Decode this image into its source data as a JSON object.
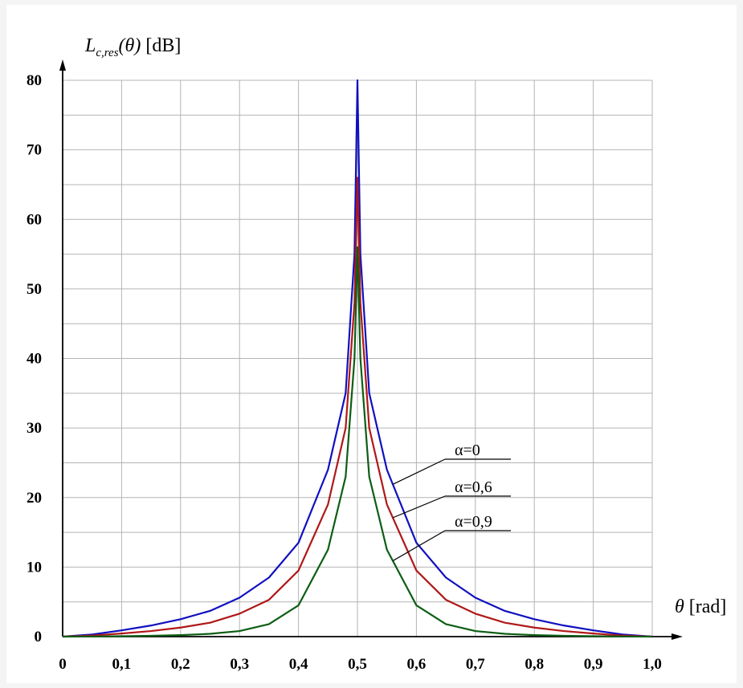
{
  "chart_data": {
    "type": "line",
    "ylabel": {
      "main": "L",
      "sub": "c,res",
      "arg": "(θ)",
      "unit": " [dB]"
    },
    "xlabel": {
      "symbol": "θ",
      "unit": " [rad]"
    },
    "xlim": [
      0,
      1.0
    ],
    "ylim": [
      0,
      80
    ],
    "x_ticks": [
      "0",
      "0,1",
      "0,2",
      "0,3",
      "0,4",
      "0,5",
      "0,6",
      "0,7",
      "0,8",
      "0,9",
      "1,0"
    ],
    "y_ticks": [
      "0",
      "10",
      "20",
      "30",
      "40",
      "50",
      "60",
      "70",
      "80"
    ],
    "grid": true,
    "series": [
      {
        "name": "α=0",
        "color": "#1010c0",
        "x": [
          0.0,
          0.05,
          0.1,
          0.15,
          0.2,
          0.25,
          0.3,
          0.35,
          0.4,
          0.45,
          0.48,
          0.495,
          0.5,
          0.505,
          0.52,
          0.55,
          0.6,
          0.65,
          0.7,
          0.75,
          0.8,
          0.85,
          0.9,
          0.95,
          1.0
        ],
        "y": [
          0.0,
          0.3,
          0.9,
          1.6,
          2.5,
          3.7,
          5.6,
          8.5,
          13.5,
          24.0,
          35.0,
          55.0,
          80.0,
          55.0,
          35.0,
          24.0,
          13.5,
          8.5,
          5.6,
          3.7,
          2.5,
          1.6,
          0.9,
          0.3,
          0.0
        ]
      },
      {
        "name": "α=0,6",
        "color": "#b01818",
        "x": [
          0.0,
          0.05,
          0.1,
          0.15,
          0.2,
          0.25,
          0.3,
          0.35,
          0.4,
          0.45,
          0.48,
          0.495,
          0.5,
          0.505,
          0.52,
          0.55,
          0.6,
          0.65,
          0.7,
          0.75,
          0.8,
          0.85,
          0.9,
          0.95,
          1.0
        ],
        "y": [
          0.0,
          0.15,
          0.45,
          0.8,
          1.3,
          2.0,
          3.3,
          5.3,
          9.5,
          19.0,
          30.0,
          48.0,
          66.0,
          48.0,
          30.0,
          19.0,
          9.5,
          5.3,
          3.3,
          2.0,
          1.3,
          0.8,
          0.45,
          0.15,
          0.0
        ]
      },
      {
        "name": "α=0,9",
        "color": "#0c5e14",
        "x": [
          0.0,
          0.05,
          0.1,
          0.15,
          0.2,
          0.25,
          0.3,
          0.35,
          0.4,
          0.45,
          0.48,
          0.495,
          0.5,
          0.505,
          0.52,
          0.55,
          0.6,
          0.65,
          0.7,
          0.75,
          0.8,
          0.85,
          0.9,
          0.95,
          1.0
        ],
        "y": [
          0.0,
          0.02,
          0.06,
          0.12,
          0.22,
          0.4,
          0.8,
          1.8,
          4.5,
          12.5,
          23.0,
          40.0,
          56.0,
          40.0,
          23.0,
          12.5,
          4.5,
          1.8,
          0.8,
          0.4,
          0.22,
          0.12,
          0.06,
          0.02,
          0.0
        ]
      }
    ]
  }
}
